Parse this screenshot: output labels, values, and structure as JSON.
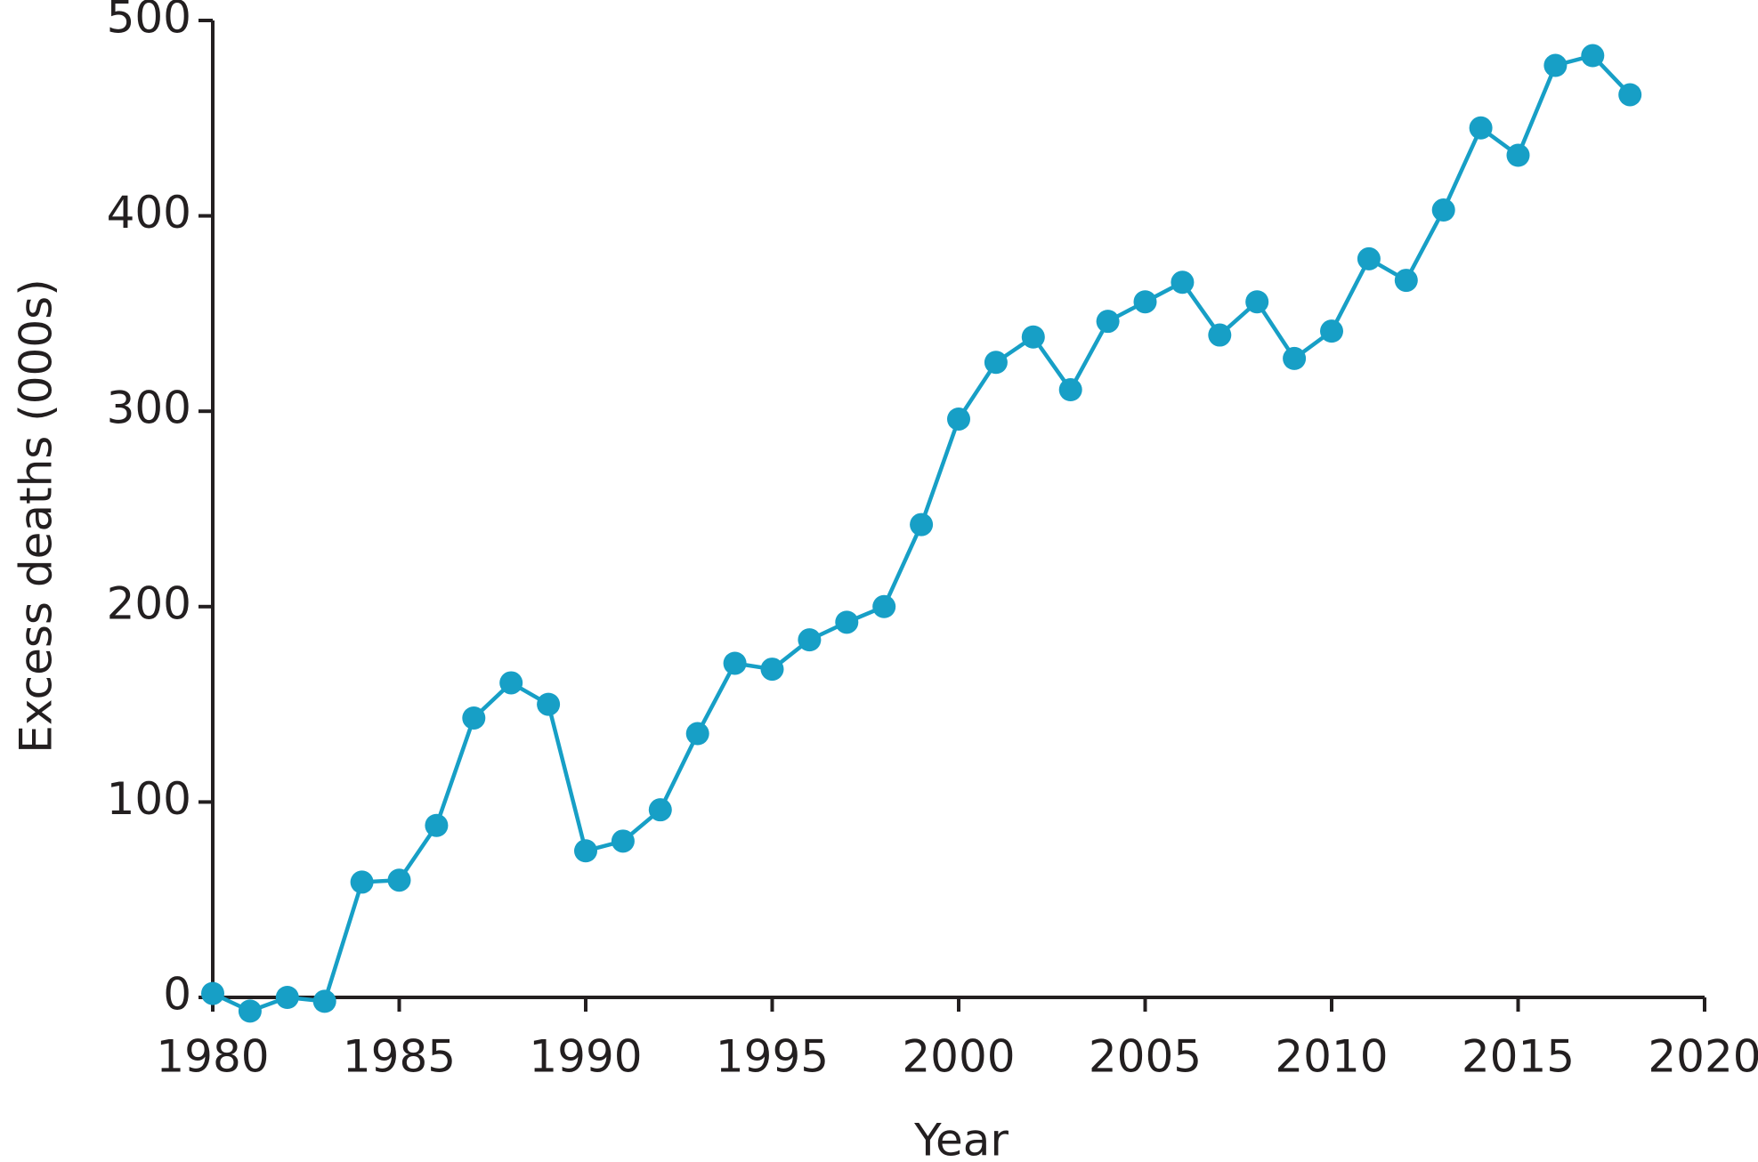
{
  "chart_data": {
    "type": "line",
    "x_label": "Year",
    "y_label": "Excess deaths (000s)",
    "x": [
      1980,
      1981,
      1982,
      1983,
      1984,
      1985,
      1986,
      1987,
      1988,
      1989,
      1990,
      1991,
      1992,
      1993,
      1994,
      1995,
      1996,
      1997,
      1998,
      1999,
      2000,
      2001,
      2002,
      2003,
      2004,
      2005,
      2006,
      2007,
      2008,
      2009,
      2010,
      2011,
      2012,
      2013,
      2014,
      2015,
      2016,
      2017,
      2018
    ],
    "series": [
      {
        "color": "#179fc6",
        "values": [
          2,
          -7,
          0,
          -2,
          59,
          60,
          88,
          143,
          161,
          150,
          75,
          80,
          96,
          135,
          171,
          168,
          183,
          192,
          200,
          242,
          296,
          325,
          338,
          311,
          346,
          356,
          366,
          339,
          356,
          327,
          341,
          378,
          367,
          403,
          445,
          431,
          477,
          482,
          462
        ]
      }
    ],
    "xlim": [
      1980,
      2020
    ],
    "xticks": [
      1980,
      1985,
      1990,
      1995,
      2000,
      2005,
      2010,
      2015,
      2020
    ],
    "ylim": [
      0,
      500
    ],
    "yticks": [
      0,
      100,
      200,
      300,
      400,
      500
    ]
  }
}
